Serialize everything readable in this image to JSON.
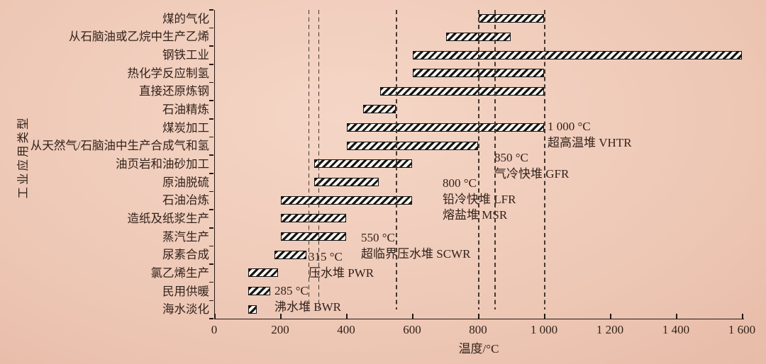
{
  "figure": {
    "background_color": "#eec8b6",
    "text_color": "#33231c",
    "bar_hatch_color": "#151515",
    "bar_fill_color": "#f8f4ee"
  },
  "chart_data": {
    "type": "bar",
    "orientation": "horizontal-range",
    "title": "",
    "xlabel": "温度/°C",
    "ylabel": "工业应用类型",
    "xlim": [
      0,
      1600
    ],
    "grid": false,
    "x_ticks": {
      "values": [
        0,
        200,
        400,
        600,
        800,
        1000,
        1200,
        1400,
        1600
      ],
      "labels": [
        "0",
        "200",
        "400",
        "600",
        "800",
        "1 000",
        "1 200",
        "1 400",
        "1 600"
      ]
    },
    "categories": [
      {
        "label": "煤的气化",
        "range": [
          800,
          1000
        ]
      },
      {
        "label": "从石脑油或乙烷中生产乙烯",
        "range": [
          700,
          900
        ]
      },
      {
        "label": "钢铁工业",
        "range": [
          600,
          1600
        ]
      },
      {
        "label": "热化学反应制氢",
        "range": [
          600,
          1000
        ]
      },
      {
        "label": "直接还原炼钢",
        "range": [
          500,
          1000
        ]
      },
      {
        "label": "石油精炼",
        "range": [
          450,
          550
        ]
      },
      {
        "label": "煤炭加工",
        "range": [
          400,
          1000
        ]
      },
      {
        "label": "从天然气/石脑油中生产合成气和氢",
        "range": [
          400,
          800
        ]
      },
      {
        "label": "油页岩和油砂加工",
        "range": [
          300,
          600
        ]
      },
      {
        "label": "原油脱硫",
        "range": [
          300,
          500
        ]
      },
      {
        "label": "石油冶炼",
        "range": [
          200,
          600
        ]
      },
      {
        "label": "造纸及纸浆生产",
        "range": [
          200,
          400
        ]
      },
      {
        "label": "蒸汽生产",
        "range": [
          200,
          400
        ]
      },
      {
        "label": "尿素合成",
        "range": [
          180,
          280
        ]
      },
      {
        "label": "氯乙烯生产",
        "range": [
          100,
          195
        ]
      },
      {
        "label": "民用供暖",
        "range": [
          100,
          170
        ]
      },
      {
        "label": "海水淡化",
        "range": [
          100,
          130
        ]
      }
    ],
    "reactor_lines": [
      {
        "temp": 285,
        "temp_label": "285 °C",
        "names": [
          "沸水堆 BWR"
        ]
      },
      {
        "temp": 315,
        "temp_label": "315 °C",
        "names": [
          "压水堆 PWR"
        ]
      },
      {
        "temp": 550,
        "temp_label": "550 °C",
        "names": [
          "超临界压水堆 SCWR"
        ]
      },
      {
        "temp": 800,
        "temp_label": "800 °C",
        "names": [
          "铅冷快堆 LFR",
          "熔盐堆 MSR"
        ]
      },
      {
        "temp": 850,
        "temp_label": "850 °C",
        "names": [
          "气冷快堆 GFR"
        ]
      },
      {
        "temp": 1000,
        "temp_label": "1 000 °C",
        "names": [
          "超高温堆 VHTR"
        ]
      }
    ]
  }
}
